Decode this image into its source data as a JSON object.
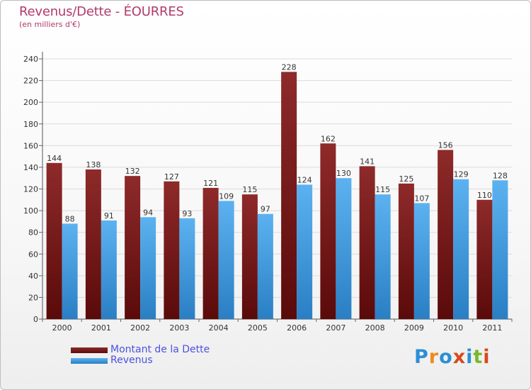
{
  "chart_data": {
    "type": "bar",
    "title": "Revenus/Dette - ÉOURRES",
    "subtitle": "(en milliers d'€)",
    "categories": [
      "2000",
      "2001",
      "2002",
      "2003",
      "2004",
      "2005",
      "2006",
      "2007",
      "2008",
      "2009",
      "2010",
      "2011"
    ],
    "series": [
      {
        "name": "Montant de la Dette",
        "values": [
          144,
          138,
          132,
          127,
          121,
          115,
          228,
          162,
          141,
          125,
          156,
          110
        ],
        "color": "#7a1c1c"
      },
      {
        "name": "Revenus",
        "values": [
          88,
          91,
          94,
          93,
          109,
          97,
          124,
          130,
          115,
          107,
          129,
          128
        ],
        "color": "#4aa2e6"
      }
    ],
    "ylim": [
      0,
      240
    ],
    "yticks": [
      0,
      20,
      40,
      60,
      80,
      100,
      120,
      140,
      160,
      180,
      200,
      220,
      240
    ],
    "grid": true,
    "legend": "bottom-left"
  },
  "branding": {
    "logo_letters": [
      "P",
      "r",
      "o",
      "x",
      "i",
      "t",
      "i"
    ],
    "logo_colors": [
      "#2a8fd6",
      "#f08a1c",
      "#2a8fd6",
      "#d64a1c",
      "#2a8fd6",
      "#7ab82a",
      "#d64a1c"
    ]
  }
}
